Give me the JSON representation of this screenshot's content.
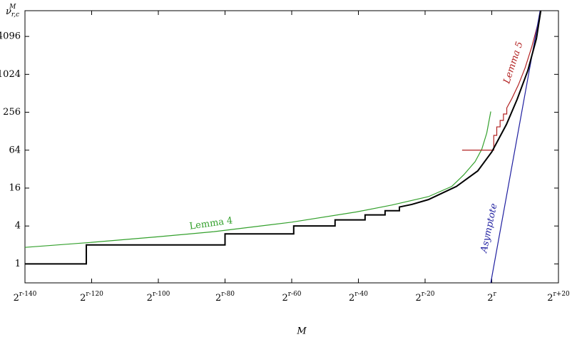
{
  "chart_data": {
    "type": "line",
    "xlabel": "M",
    "ylabel": {
      "text": "ν",
      "sub": "r,c",
      "sup": "M"
    },
    "xlim": [
      -140,
      20
    ],
    "ylim": [
      0.5,
      10500
    ],
    "log_y": true,
    "log_base": 2,
    "xticks": [
      {
        "value": -140,
        "label": "2",
        "sup": "r-140"
      },
      {
        "value": -120,
        "label": "2",
        "sup": "r-120"
      },
      {
        "value": -100,
        "label": "2",
        "sup": "r-100"
      },
      {
        "value": -80,
        "label": "2",
        "sup": "r-80"
      },
      {
        "value": -60,
        "label": "2",
        "sup": "r-60"
      },
      {
        "value": -40,
        "label": "2",
        "sup": "r-40"
      },
      {
        "value": -20,
        "label": "2",
        "sup": "r-20"
      },
      {
        "value": 0,
        "label": "2",
        "sup": "r"
      },
      {
        "value": 20,
        "label": "2",
        "sup": "r+20"
      }
    ],
    "yticks": [
      1,
      4,
      16,
      64,
      256,
      1024,
      4096
    ],
    "series": [
      {
        "name": "Lemma 4",
        "color": "#33a02c",
        "x": [
          -140,
          -120,
          -100,
          -83.3,
          -60,
          -40.5,
          -30,
          -19,
          -12,
          -8.4,
          -5,
          -3,
          -1.5,
          -0.3
        ],
        "values": [
          1.83,
          2.2,
          2.7,
          3.25,
          4.6,
          6.7,
          8.6,
          11.7,
          17,
          26,
          42,
          66,
          120,
          263
        ]
      },
      {
        "name": "Lemma 5",
        "color": "#b22222",
        "x": [
          -8.9,
          0.6,
          0.6,
          1.5,
          1.5,
          2.5,
          2.5,
          3.5,
          3.5,
          4.5,
          4.5,
          6,
          8,
          10,
          12,
          14
        ],
        "values": [
          64,
          64,
          110,
          110,
          150,
          150,
          190,
          190,
          240,
          240,
          300,
          420,
          700,
          1300,
          2800,
          7000
        ]
      },
      {
        "name": "Asymptote",
        "color": "#1f1fa0",
        "x": [
          -0.3,
          14.5
        ],
        "values": [
          0.5,
          10500
        ]
      },
      {
        "name": "ν",
        "color": "#000000",
        "x": [
          -140,
          -121.6,
          -121.6,
          -80,
          -80,
          -59.4,
          -59.4,
          -47,
          -47,
          -38,
          -38,
          -32,
          -32,
          -27.7,
          -27.7,
          -24,
          -19,
          -10.6,
          -4.2,
          0,
          4.4,
          7.6,
          10.8,
          13.4,
          14.7
        ],
        "values": [
          1,
          1,
          2,
          2,
          3,
          3,
          4,
          4,
          5,
          5,
          6,
          6,
          7,
          7,
          8,
          8.8,
          10.5,
          17,
          30,
          60,
          164,
          410,
          1170,
          3800,
          10500
        ]
      }
    ]
  }
}
